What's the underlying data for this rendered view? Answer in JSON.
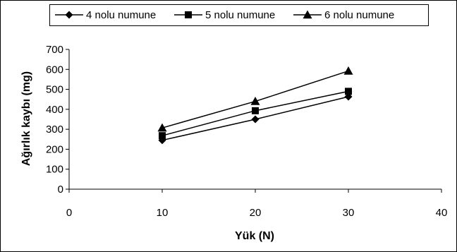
{
  "chart_data": {
    "type": "line",
    "title": "",
    "xlabel": "Yük (N)",
    "ylabel": "Ağırlık kaybı (mg)",
    "xlim": [
      0,
      40
    ],
    "ylim": [
      0,
      700
    ],
    "xticks": [
      0,
      10,
      20,
      30,
      40
    ],
    "yticks": [
      0,
      100,
      200,
      300,
      400,
      500,
      600,
      700
    ],
    "grid": false,
    "legend_position": "top",
    "series": [
      {
        "name": "4 nolu numune",
        "marker": "diamond",
        "color": "#000000",
        "points": [
          {
            "x": 10,
            "y": 245
          },
          {
            "x": 20,
            "y": 350
          },
          {
            "x": 30,
            "y": 463
          }
        ]
      },
      {
        "name": "5 nolu numune",
        "marker": "square",
        "color": "#000000",
        "points": [
          {
            "x": 10,
            "y": 268
          },
          {
            "x": 20,
            "y": 393
          },
          {
            "x": 30,
            "y": 490
          }
        ]
      },
      {
        "name": "6 nolu numune",
        "marker": "triangle",
        "color": "#000000",
        "points": [
          {
            "x": 10,
            "y": 307
          },
          {
            "x": 20,
            "y": 440
          },
          {
            "x": 30,
            "y": 592
          }
        ]
      }
    ]
  }
}
